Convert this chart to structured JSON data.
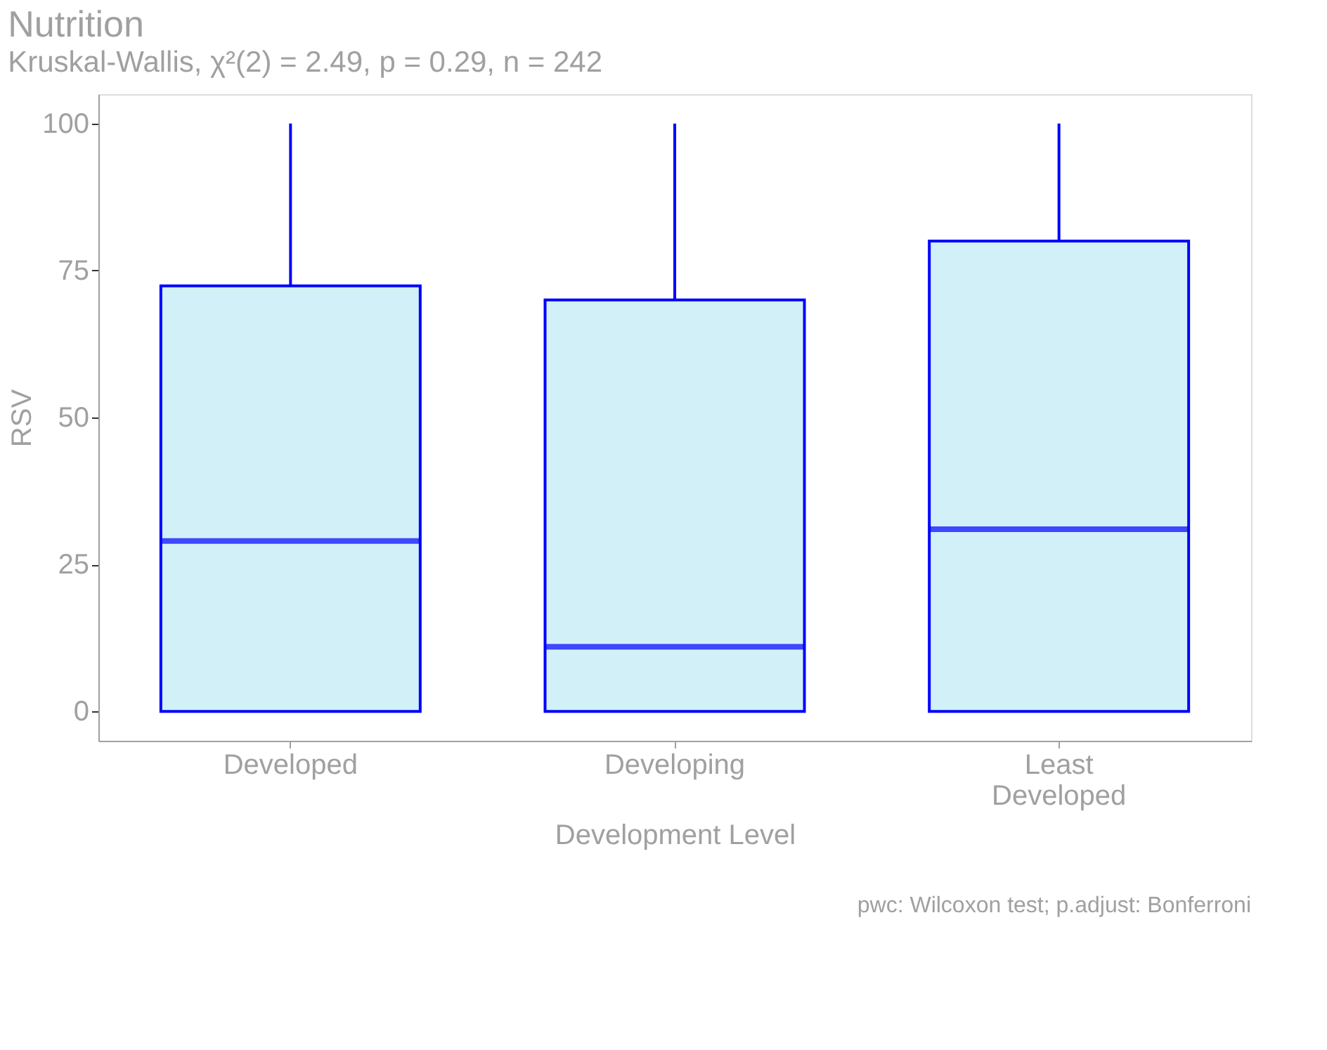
{
  "chart_data": {
    "type": "box",
    "title": "Nutrition",
    "subtitle": "Kruskal-Wallis, χ²(2) = 2.49, p = 0.29, n = 242",
    "xlabel": "Development Level",
    "ylabel": "RSV",
    "categories": [
      "Developed",
      "Developing",
      "Least Developed"
    ],
    "color": "#0000ff",
    "boxes": [
      {
        "low": 0,
        "q1": 0,
        "median": 29,
        "q3": 72.4,
        "high": 100
      },
      {
        "low": 0,
        "q1": 0,
        "median": 11,
        "q3": 70,
        "high": 100
      },
      {
        "low": 0,
        "q1": 0,
        "median": 31,
        "q3": 80,
        "high": 100
      }
    ],
    "ylim": [
      -5,
      105
    ],
    "yticks": [
      0,
      25,
      50,
      75,
      100
    ],
    "grid": false,
    "annotations": [
      "pwc: Wilcoxon test; p.adjust: Bonferroni"
    ]
  }
}
